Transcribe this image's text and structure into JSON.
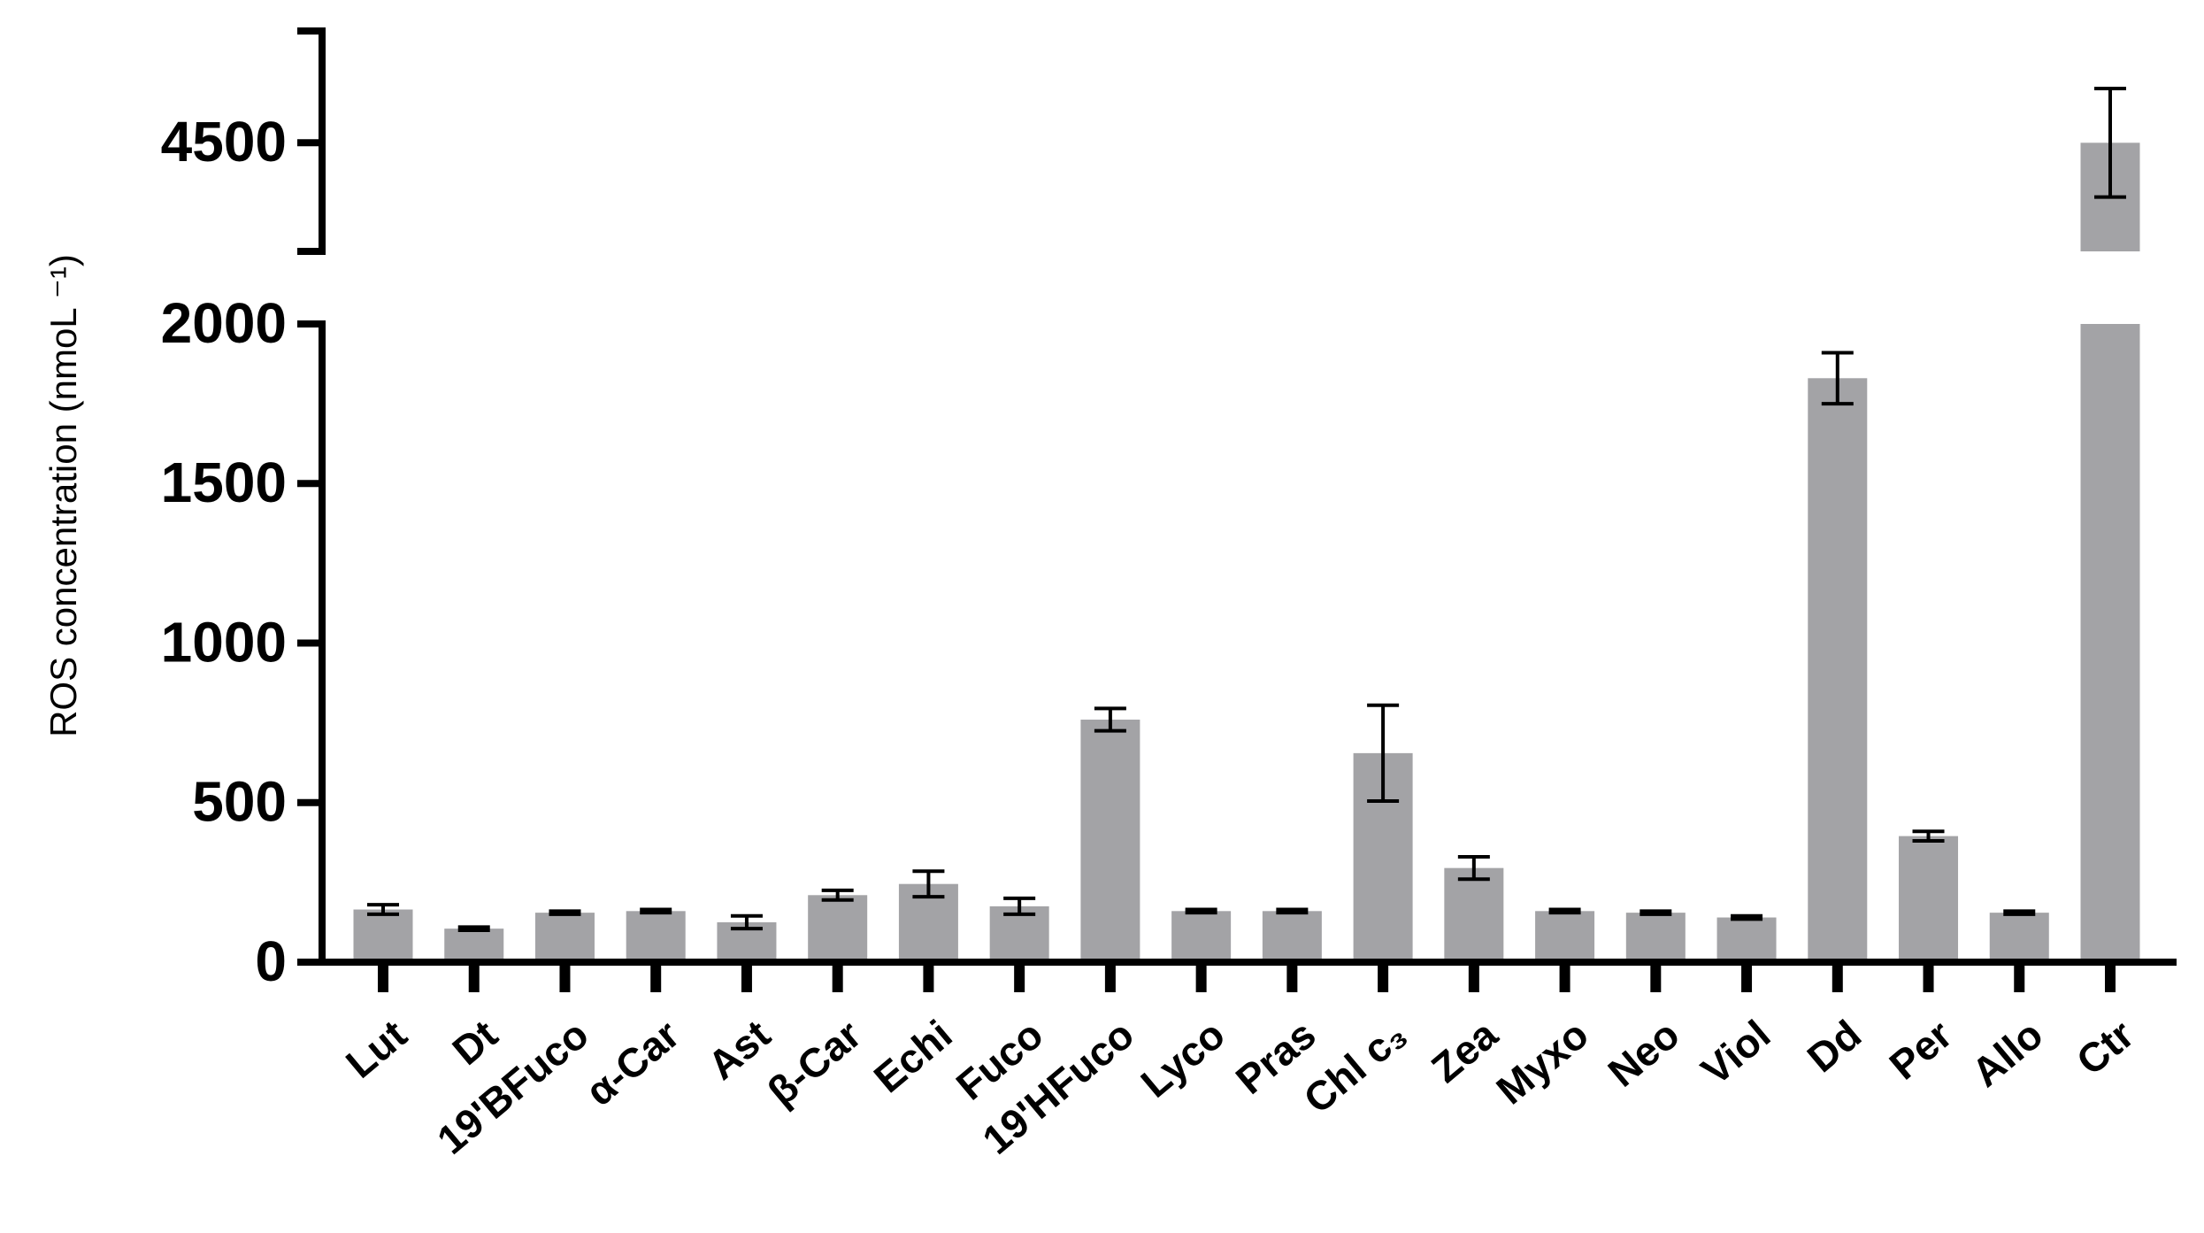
{
  "chart_data": {
    "type": "bar",
    "y_label": "ROS concentration (nmoL ⁻¹)",
    "categories": [
      "Lut",
      "Dt",
      "19'BFuco",
      "α-Car",
      "Ast",
      "β-Car",
      "Echi",
      "Fuco",
      "19'HFuco",
      "Lyco",
      "Pras",
      "Chl c₃",
      "Zea",
      "Myxo",
      "Neo",
      "Viol",
      "Dd",
      "Per",
      "Allo",
      "Ctr"
    ],
    "values": [
      165,
      105,
      155,
      160,
      125,
      210,
      245,
      175,
      760,
      160,
      160,
      655,
      295,
      160,
      155,
      140,
      1830,
      395,
      155,
      4500
    ],
    "errors": [
      15,
      5,
      5,
      5,
      20,
      15,
      40,
      25,
      35,
      5,
      5,
      150,
      35,
      5,
      5,
      5,
      80,
      15,
      5,
      170
    ],
    "color": "#a3a3a6",
    "axis_segments": [
      {
        "ylim": [
          0,
          2000
        ],
        "yticks": [
          0,
          500,
          1000,
          1500,
          2000
        ]
      },
      {
        "ylim": [
          4160,
          4850
        ],
        "yticks": [
          4500
        ]
      }
    ]
  }
}
